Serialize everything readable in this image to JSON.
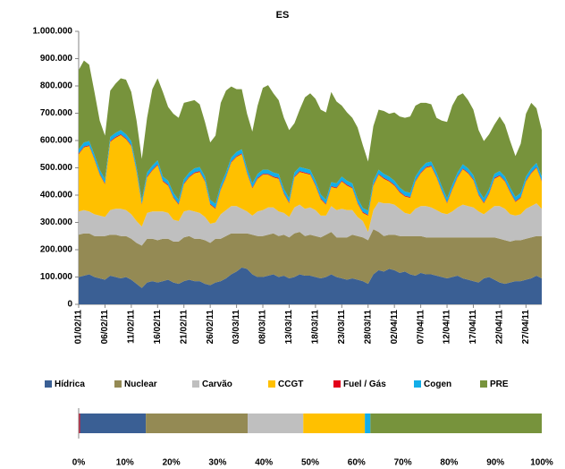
{
  "chart_data": [
    {
      "type": "area",
      "stacked": true,
      "title": "ES",
      "categories": [
        "01/02/11",
        null,
        null,
        null,
        null,
        "06/02/11",
        null,
        null,
        null,
        null,
        "11/02/11",
        null,
        null,
        null,
        null,
        "16/02/11",
        null,
        null,
        null,
        null,
        "21/02/11",
        null,
        null,
        null,
        null,
        "26/02/11",
        null,
        null,
        null,
        null,
        "03/03/11",
        null,
        null,
        null,
        null,
        "08/03/11",
        null,
        null,
        null,
        null,
        "13/03/11",
        null,
        null,
        null,
        null,
        "18/03/11",
        null,
        null,
        null,
        null,
        "23/03/11",
        null,
        null,
        null,
        null,
        "28/03/11",
        null,
        null,
        null,
        null,
        "02/04/11",
        null,
        null,
        null,
        null,
        "07/04/11",
        null,
        null,
        null,
        null,
        "12/04/11",
        null,
        null,
        null,
        null,
        "17/04/11",
        null,
        null,
        null,
        null,
        "22/04/11",
        null,
        null,
        null,
        null,
        "27/04/11",
        null,
        null,
        null
      ],
      "ylim": [
        0,
        1000000
      ],
      "yticks": [
        0,
        {
          "value": 100000,
          "label": "100.000"
        },
        {
          "value": 200000,
          "label": "200.000"
        },
        {
          "value": 300000,
          "label": "300.000"
        },
        {
          "value": 400000,
          "label": "400.000"
        },
        {
          "value": 500000,
          "label": "500.000"
        },
        {
          "value": 600000,
          "label": "600.000"
        },
        {
          "value": 700000,
          "label": "700.000"
        },
        {
          "value": 800000,
          "label": "800.000"
        },
        {
          "value": 900000,
          "label": "900.000"
        },
        {
          "value": 1000000,
          "label": "1.000.000"
        }
      ],
      "series": [
        {
          "name": "Hídrica",
          "color": "#3a5f94",
          "values": [
            100000,
            105000,
            110000,
            100000,
            95000,
            90000,
            105000,
            100000,
            95000,
            100000,
            90000,
            75000,
            60000,
            80000,
            85000,
            80000,
            85000,
            90000,
            80000,
            75000,
            85000,
            90000,
            85000,
            85000,
            75000,
            70000,
            80000,
            85000,
            95000,
            110000,
            120000,
            135000,
            130000,
            110000,
            100000,
            100000,
            105000,
            110000,
            100000,
            105000,
            95000,
            100000,
            110000,
            105000,
            105000,
            100000,
            95000,
            100000,
            110000,
            100000,
            95000,
            90000,
            95000,
            90000,
            85000,
            75000,
            110000,
            125000,
            120000,
            130000,
            125000,
            115000,
            120000,
            110000,
            105000,
            115000,
            110000,
            110000,
            105000,
            100000,
            95000,
            100000,
            105000,
            95000,
            90000,
            85000,
            80000,
            95000,
            100000,
            90000,
            80000,
            75000,
            80000,
            85000,
            85000,
            90000,
            95000,
            105000,
            95000
          ]
        },
        {
          "name": "Nuclear",
          "color": "#948a54",
          "values": [
            155000,
            155000,
            150000,
            150000,
            155000,
            160000,
            150000,
            155000,
            155000,
            150000,
            150000,
            150000,
            155000,
            160000,
            155000,
            155000,
            155000,
            150000,
            150000,
            155000,
            160000,
            160000,
            155000,
            155000,
            160000,
            155000,
            160000,
            155000,
            155000,
            150000,
            140000,
            125000,
            130000,
            145000,
            150000,
            150000,
            150000,
            150000,
            150000,
            150000,
            150000,
            160000,
            155000,
            145000,
            150000,
            150000,
            150000,
            155000,
            155000,
            145000,
            150000,
            155000,
            160000,
            160000,
            160000,
            160000,
            165000,
            140000,
            130000,
            125000,
            130000,
            135000,
            130000,
            140000,
            145000,
            135000,
            135000,
            135000,
            140000,
            145000,
            150000,
            145000,
            140000,
            150000,
            155000,
            160000,
            165000,
            150000,
            145000,
            155000,
            160000,
            160000,
            150000,
            150000,
            150000,
            150000,
            150000,
            145000,
            155000
          ]
        },
        {
          "name": "Carvão",
          "color": "#bfbfbf",
          "values": [
            85000,
            85000,
            80000,
            80000,
            75000,
            70000,
            90000,
            95000,
            100000,
            95000,
            90000,
            80000,
            70000,
            95000,
            100000,
            105000,
            100000,
            95000,
            80000,
            75000,
            95000,
            95000,
            100000,
            95000,
            85000,
            70000,
            60000,
            90000,
            95000,
            100000,
            100000,
            90000,
            80000,
            70000,
            90000,
            95000,
            100000,
            95000,
            90000,
            80000,
            75000,
            95000,
            100000,
            100000,
            100000,
            95000,
            80000,
            70000,
            95000,
            100000,
            105000,
            100000,
            90000,
            70000,
            60000,
            30000,
            70000,
            110000,
            120000,
            115000,
            110000,
            100000,
            85000,
            80000,
            100000,
            110000,
            115000,
            110000,
            100000,
            90000,
            85000,
            95000,
            110000,
            120000,
            115000,
            110000,
            95000,
            85000,
            100000,
            115000,
            120000,
            115000,
            100000,
            90000,
            95000,
            110000,
            115000,
            120000,
            100000
          ]
        },
        {
          "name": "CCGT",
          "color": "#ffc000",
          "values": [
            210000,
            230000,
            240000,
            200000,
            150000,
            120000,
            250000,
            260000,
            270000,
            260000,
            250000,
            180000,
            80000,
            130000,
            150000,
            170000,
            110000,
            100000,
            80000,
            60000,
            100000,
            120000,
            140000,
            150000,
            130000,
            70000,
            50000,
            90000,
            120000,
            160000,
            180000,
            200000,
            140000,
            100000,
            120000,
            130000,
            120000,
            110000,
            120000,
            70000,
            50000,
            110000,
            120000,
            130000,
            120000,
            90000,
            60000,
            40000,
            70000,
            80000,
            100000,
            90000,
            80000,
            50000,
            30000,
            60000,
            90000,
            100000,
            90000,
            80000,
            70000,
            60000,
            60000,
            60000,
            100000,
            120000,
            140000,
            150000,
            120000,
            80000,
            40000,
            80000,
            110000,
            130000,
            120000,
            100000,
            60000,
            40000,
            60000,
            100000,
            110000,
            100000,
            80000,
            50000,
            60000,
            100000,
            120000,
            130000,
            100000
          ]
        },
        {
          "name": "Fuel / Gás",
          "color": "#e3001b",
          "values": [
            3000,
            3000,
            3000,
            3000,
            3000,
            3000,
            3000,
            3000,
            3000,
            3000,
            3000,
            3000,
            3000,
            3000,
            3000,
            3000,
            3000,
            3000,
            3000,
            3000,
            3000,
            3000,
            3000,
            3000,
            3000,
            3000,
            3000,
            3000,
            3000,
            3000,
            3000,
            3000,
            3000,
            3000,
            3000,
            3000,
            3000,
            3000,
            3000,
            3000,
            3000,
            3000,
            3000,
            3000,
            3000,
            3000,
            3000,
            3000,
            3000,
            3000,
            3000,
            3000,
            3000,
            3000,
            3000,
            3000,
            3000,
            3000,
            3000,
            3000,
            3000,
            3000,
            3000,
            3000,
            3000,
            3000,
            3000,
            3000,
            3000,
            3000,
            3000,
            3000,
            3000,
            3000,
            3000,
            3000,
            3000,
            3000,
            3000,
            3000,
            3000,
            3000,
            3000,
            3000,
            3000,
            3000,
            3000,
            3000,
            3000
          ]
        },
        {
          "name": "Cogen",
          "color": "#13aee8",
          "values": [
            15000,
            15000,
            15000,
            15000,
            15000,
            15000,
            15000,
            15000,
            15000,
            15000,
            15000,
            15000,
            15000,
            15000,
            15000,
            15000,
            15000,
            15000,
            15000,
            15000,
            15000,
            15000,
            15000,
            15000,
            15000,
            15000,
            15000,
            15000,
            15000,
            15000,
            15000,
            15000,
            15000,
            15000,
            15000,
            15000,
            15000,
            15000,
            15000,
            15000,
            15000,
            15000,
            15000,
            15000,
            15000,
            15000,
            15000,
            15000,
            15000,
            15000,
            15000,
            15000,
            15000,
            15000,
            15000,
            15000,
            15000,
            15000,
            15000,
            15000,
            15000,
            15000,
            15000,
            15000,
            15000,
            15000,
            15000,
            15000,
            15000,
            15000,
            15000,
            15000,
            15000,
            15000,
            15000,
            15000,
            15000,
            15000,
            15000,
            15000,
            15000,
            15000,
            15000,
            15000,
            15000,
            15000,
            15000,
            15000,
            15000
          ]
        },
        {
          "name": "PRE",
          "color": "#77933c",
          "values": [
            290000,
            300000,
            280000,
            230000,
            180000,
            160000,
            170000,
            180000,
            190000,
            200000,
            180000,
            170000,
            150000,
            200000,
            280000,
            300000,
            310000,
            270000,
            290000,
            300000,
            280000,
            260000,
            250000,
            230000,
            200000,
            210000,
            250000,
            300000,
            300000,
            260000,
            230000,
            220000,
            200000,
            190000,
            250000,
            300000,
            310000,
            290000,
            270000,
            260000,
            250000,
            180000,
            210000,
            260000,
            280000,
            300000,
            310000,
            320000,
            330000,
            300000,
            260000,
            250000,
            240000,
            260000,
            230000,
            180000,
            200000,
            220000,
            230000,
            230000,
            250000,
            260000,
            270000,
            280000,
            260000,
            240000,
            220000,
            210000,
            200000,
            240000,
            280000,
            290000,
            280000,
            260000,
            250000,
            240000,
            220000,
            210000,
            200000,
            180000,
            200000,
            190000,
            170000,
            150000,
            180000,
            230000,
            240000,
            200000,
            170000
          ]
        }
      ]
    },
    {
      "type": "bar",
      "orientation": "horizontal",
      "stacked": true,
      "xlim": [
        0,
        100
      ],
      "xticks": [
        {
          "value": 0,
          "label": "0%"
        },
        {
          "value": 10,
          "label": "10%"
        },
        {
          "value": 20,
          "label": "20%"
        },
        {
          "value": 30,
          "label": "30%"
        },
        {
          "value": 40,
          "label": "40%"
        },
        {
          "value": 50,
          "label": "50%"
        },
        {
          "value": 60,
          "label": "60%"
        },
        {
          "value": 70,
          "label": "70%"
        },
        {
          "value": 80,
          "label": "80%"
        },
        {
          "value": 90,
          "label": "90%"
        },
        {
          "value": 100,
          "label": "100%"
        }
      ],
      "series": [
        {
          "color": "#e3001b",
          "values": [
            0.3
          ]
        },
        {
          "color": "#3a5f94",
          "values": [
            14.2
          ]
        },
        {
          "color": "#948a54",
          "values": [
            22
          ]
        },
        {
          "color": "#bfbfbf",
          "values": [
            12
          ]
        },
        {
          "color": "#ffc000",
          "values": [
            13.3
          ]
        },
        {
          "color": "#13aee8",
          "values": [
            1.2
          ]
        },
        {
          "color": "#77933c",
          "values": [
            37
          ]
        }
      ]
    }
  ]
}
